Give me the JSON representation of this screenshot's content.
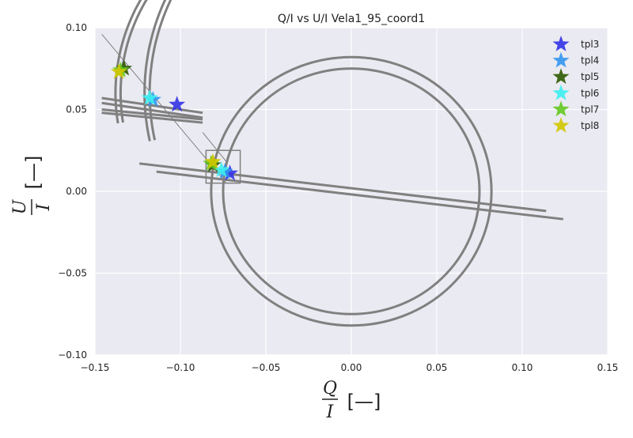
{
  "chart_data": {
    "type": "scatter",
    "title": "Q/I vs U/I Vela1_95_coord1",
    "xlabel": {
      "num": "Q",
      "den": "I",
      "unit": "[—]"
    },
    "ylabel": {
      "num": "U",
      "den": "I",
      "unit": "[—]"
    },
    "xlim": [
      -0.15,
      0.15
    ],
    "ylim": [
      -0.1,
      0.1
    ],
    "xticks": [
      -0.15,
      -0.1,
      -0.05,
      0.0,
      0.05,
      0.1,
      0.15
    ],
    "xtick_labels": [
      "−0.15",
      "−0.10",
      "−0.05",
      "0.00",
      "0.05",
      "0.10",
      "0.15"
    ],
    "yticks": [
      -0.1,
      -0.05,
      0.0,
      0.05,
      0.1
    ],
    "ytick_labels": [
      "−0.10",
      "−0.05",
      "0.00",
      "0.05",
      "0.10"
    ],
    "grid": true,
    "legend_position": "top-right",
    "series": [
      {
        "name": "tpl3",
        "color": "#3232e6",
        "points": [
          [
            -0.102,
            0.053
          ],
          [
            -0.071,
            0.011
          ]
        ]
      },
      {
        "name": "tpl4",
        "color": "#3296f0",
        "points": [
          [
            -0.116,
            0.056
          ],
          [
            -0.074,
            0.012
          ]
        ]
      },
      {
        "name": "tpl5",
        "color": "#2d5a00",
        "points": [
          [
            -0.133,
            0.075
          ],
          [
            -0.081,
            0.016
          ]
        ]
      },
      {
        "name": "tpl6",
        "color": "#3cf0f0",
        "points": [
          [
            -0.118,
            0.057
          ],
          [
            -0.076,
            0.013
          ]
        ]
      },
      {
        "name": "tpl7",
        "color": "#64c81e",
        "points": [
          [
            -0.135,
            0.074
          ],
          [
            -0.082,
            0.017
          ]
        ]
      },
      {
        "name": "tpl8",
        "color": "#d2c800",
        "points": [
          [
            -0.136,
            0.073
          ],
          [
            -0.081,
            0.018
          ]
        ]
      }
    ],
    "circles": [
      {
        "cx": 0.0,
        "cy": 0.0,
        "r": 0.075
      },
      {
        "cx": 0.0,
        "cy": 0.0,
        "r": 0.082
      }
    ],
    "reference_lines": [
      {
        "from": [
          -0.124,
          0.017
        ],
        "to": [
          0.114,
          -0.012
        ]
      },
      {
        "from": [
          -0.114,
          0.012
        ],
        "to": [
          0.124,
          -0.017
        ]
      },
      {
        "from": [
          -0.146,
          0.057
        ],
        "to": [
          -0.087,
          0.048
        ]
      },
      {
        "from": [
          -0.146,
          0.054
        ],
        "to": [
          -0.087,
          0.045
        ]
      },
      {
        "from": [
          -0.146,
          0.05
        ],
        "to": [
          -0.087,
          0.044
        ]
      },
      {
        "from": [
          -0.146,
          0.048
        ],
        "to": [
          -0.087,
          0.042
        ]
      },
      {
        "from": [
          -0.146,
          0.096
        ],
        "to": [
          -0.073,
          0.005
        ]
      },
      {
        "from": [
          -0.087,
          0.036
        ],
        "to": [
          -0.073,
          0.018
        ]
      }
    ],
    "arcs": [
      {
        "cx": -0.02,
        "cy": 0.06,
        "r": 0.115,
        "a0": 120,
        "a1": 189
      },
      {
        "cx": -0.02,
        "cy": 0.06,
        "r": 0.118,
        "a0": 120,
        "a1": 189
      },
      {
        "cx": 0.02,
        "cy": 0.06,
        "r": 0.138,
        "a0": 120,
        "a1": 192
      },
      {
        "cx": 0.02,
        "cy": 0.06,
        "r": 0.141,
        "a0": 120,
        "a1": 192
      }
    ],
    "inset_box": {
      "x0": -0.085,
      "x1": -0.065,
      "y0": 0.005,
      "y1": 0.025
    }
  }
}
